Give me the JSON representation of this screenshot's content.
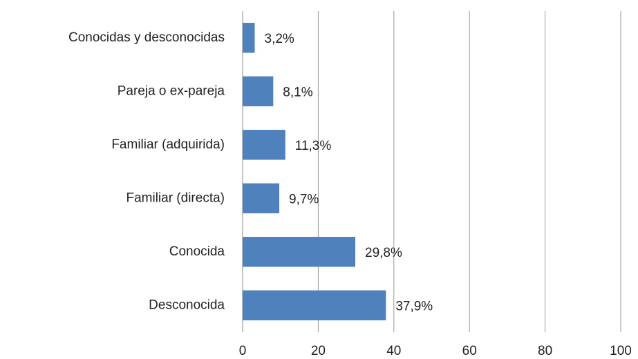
{
  "chart_data": {
    "type": "bar",
    "orientation": "horizontal",
    "categories": [
      "Conocidas y desconocidas",
      "Pareja o ex-pareja",
      "Familiar (adquirida)",
      "Familiar (directa)",
      "Conocida",
      "Desconocida"
    ],
    "values": [
      3.2,
      8.1,
      11.3,
      9.7,
      29.8,
      37.9
    ],
    "value_labels": [
      "3,2%",
      "8,1%",
      "11,3%",
      "9,7%",
      "29,8%",
      "37,9%"
    ],
    "color": "#4f81bd",
    "xlim": [
      0,
      100
    ],
    "xticks": [
      0,
      20,
      40,
      60,
      80,
      100
    ],
    "grid": true
  }
}
